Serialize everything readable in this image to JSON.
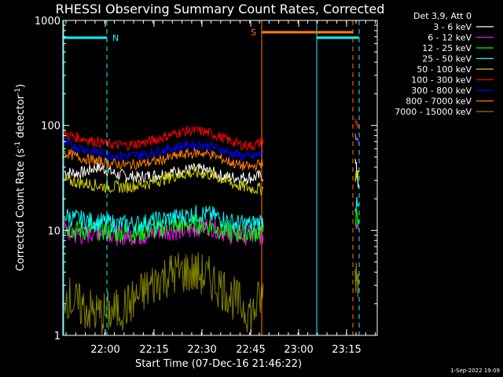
{
  "chart_data": {
    "type": "line",
    "title": "RHESSI Observing Summary Count Rates, Corrected",
    "xlabel": "Start Time (07-Dec-16 21:46:22)",
    "ylabel_main": "Corrected Count Rate (s",
    "ylabel_sup1": "-1",
    "ylabel_mid": " detector",
    "ylabel_sup2": "-1",
    "ylabel_end": ")",
    "y_scale": "log",
    "ylim": [
      1,
      1000
    ],
    "x_ticks": [
      "22:00",
      "22:15",
      "22:30",
      "22:45",
      "23:00",
      "23:15"
    ],
    "y_ticks": [
      "1",
      "10",
      "100",
      "1000"
    ],
    "legend_header": "Det 3,9, Att 0",
    "footer": "1-Sep-2022 19:09",
    "flags": {
      "night": "N",
      "saa": "S"
    },
    "series": [
      {
        "name": "3 - 6 keV",
        "color": "#ffffff",
        "values": [
          36,
          35,
          36,
          40,
          38,
          34,
          33,
          32,
          33,
          34,
          36,
          36,
          38,
          38,
          36,
          33,
          32,
          32,
          32,
          33,
          45,
          28
        ]
      },
      {
        "name": "6 - 12 keV",
        "color": "#ff00ff",
        "values": [
          10,
          9,
          9,
          10,
          10,
          9,
          9,
          9,
          9,
          10,
          10,
          10,
          10,
          11,
          11,
          10,
          9,
          9,
          9,
          9,
          12,
          12
        ]
      },
      {
        "name": "12 - 25 keV",
        "color": "#00ff00",
        "values": [
          11,
          10,
          10,
          10,
          10,
          9.5,
          9.5,
          9.5,
          10,
          10,
          11,
          11,
          11.5,
          11.5,
          11,
          10,
          9.5,
          9.5,
          9.5,
          10,
          14,
          11
        ]
      },
      {
        "name": "25 - 50 keV",
        "color": "#00ffff",
        "values": [
          14,
          13,
          12.5,
          12,
          12,
          11.5,
          11.5,
          11.5,
          12,
          12.5,
          13,
          13.5,
          14,
          14.5,
          14,
          13,
          12,
          11.5,
          11.5,
          12.5,
          18,
          16
        ]
      },
      {
        "name": "50 - 100 keV",
        "color": "#d2d200",
        "values": [
          30,
          29,
          28,
          27,
          26,
          26,
          26,
          27,
          28,
          30,
          32,
          34,
          35,
          35,
          34,
          31,
          28,
          26,
          25,
          25,
          33,
          36
        ]
      },
      {
        "name": "100 - 300 keV",
        "color": "#ff0000",
        "values": [
          83,
          78,
          74,
          70,
          67,
          65,
          65,
          67,
          70,
          75,
          80,
          86,
          89,
          88,
          84,
          77,
          70,
          65,
          64,
          70,
          110,
          100
        ]
      },
      {
        "name": "300 - 800 keV",
        "color": "#0000ff",
        "values": [
          68,
          63,
          59,
          56,
          53,
          51,
          51,
          52,
          54,
          57,
          60,
          63,
          65,
          65,
          63,
          59,
          54,
          51,
          50,
          55,
          80,
          72
        ]
      },
      {
        "name": "800 - 7000 keV",
        "color": "#ff8000",
        "values": [
          55,
          51,
          48,
          46,
          44,
          43,
          42,
          43,
          44,
          46,
          49,
          52,
          54,
          55,
          53,
          48,
          44,
          41,
          40,
          45,
          75,
          68
        ]
      },
      {
        "name": "7000 - 15000 keV",
        "color": "#808000",
        "values": [
          2.5,
          2,
          1.8,
          1.6,
          1.6,
          1.7,
          1.9,
          2.3,
          2.8,
          3.4,
          3.8,
          4,
          4,
          3.8,
          3.4,
          2.9,
          2.3,
          1.9,
          1.6,
          2.5,
          4,
          3.5
        ]
      }
    ]
  }
}
